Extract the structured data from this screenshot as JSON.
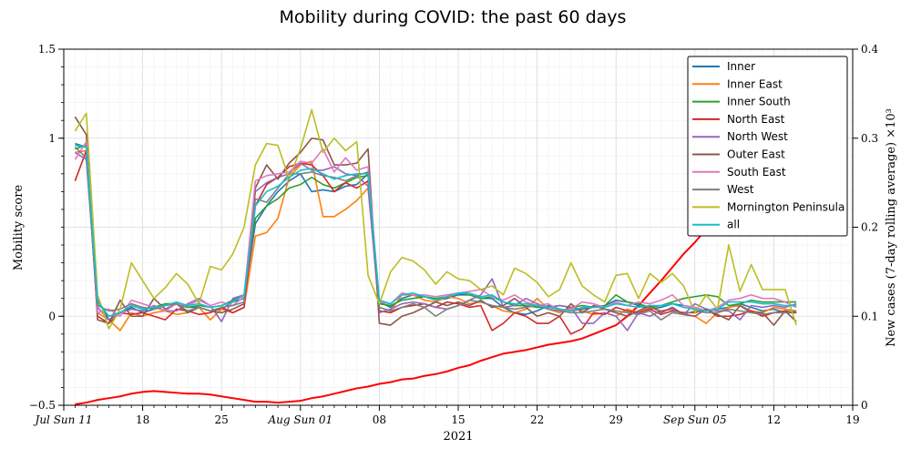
{
  "chart_data": {
    "type": "line",
    "title": "Mobility during COVID: the past 60 days",
    "xlabel": "2021",
    "ylabel": "Mobility score",
    "y2label": "New cases (7-day rolling average) ×10³",
    "ylim": [
      -0.5,
      1.5
    ],
    "y2lim": [
      0,
      0.4
    ],
    "xlim_days": [
      0,
      70
    ],
    "y_ticks": [
      {
        "value": -0.5,
        "label": "−0.5"
      },
      {
        "value": 0,
        "label": "0"
      },
      {
        "value": 1,
        "label": "1"
      },
      {
        "value": 1.5,
        "label": "1.5"
      }
    ],
    "y2_ticks": [
      {
        "value": 0,
        "label": "0"
      },
      {
        "value": 0.1,
        "label": "0.1"
      },
      {
        "value": 0.2,
        "label": "0.2"
      },
      {
        "value": 0.3,
        "label": "0.3"
      },
      {
        "value": 0.4,
        "label": "0.4"
      }
    ],
    "x_ticks": [
      {
        "day": 0,
        "label": "Jul Sun 11",
        "italic": true
      },
      {
        "day": 7,
        "label": "18"
      },
      {
        "day": 14,
        "label": "25"
      },
      {
        "day": 21,
        "label": "Aug Sun 01",
        "italic": true
      },
      {
        "day": 28,
        "label": "08"
      },
      {
        "day": 35,
        "label": "15"
      },
      {
        "day": 42,
        "label": "22"
      },
      {
        "day": 49,
        "label": "29"
      },
      {
        "day": 56,
        "label": "Sep Sun 05",
        "italic": true
      },
      {
        "day": 63,
        "label": "12"
      },
      {
        "day": 70,
        "label": "19"
      }
    ],
    "grid": true,
    "legend": "top-right",
    "start_day": 1,
    "series": [
      {
        "name": "Inner",
        "color": "#1f77b4",
        "values": [
          0.97,
          0.95,
          0.1,
          -0.02,
          0.02,
          0.05,
          0.02,
          0.04,
          0.06,
          0.07,
          0.05,
          0.05,
          0.03,
          0.04,
          0.08,
          0.1,
          0.52,
          0.62,
          0.7,
          0.76,
          0.8,
          0.7,
          0.71,
          0.7,
          0.73,
          0.74,
          0.8,
          0.08,
          0.05,
          0.1,
          0.12,
          0.11,
          0.09,
          0.1,
          0.12,
          0.12,
          0.1,
          0.1,
          0.05,
          0.02,
          0.01,
          0.03,
          0.06,
          0.04,
          0.03,
          0.04,
          0.05,
          0.06,
          0.09,
          0.08,
          0.06,
          0.04,
          0.05,
          0.07,
          0.06,
          0.05,
          0.03,
          0.04,
          0.05,
          0.07,
          0.05,
          0.03,
          0.04,
          0.02,
          0.02
        ]
      },
      {
        "name": "Inner East",
        "color": "#ff7f0e",
        "values": [
          0.92,
          0.93,
          0.02,
          -0.02,
          -0.08,
          0.02,
          0.0,
          0.02,
          0.03,
          0.01,
          0.02,
          0.05,
          -0.02,
          0.04,
          0.02,
          0.05,
          0.45,
          0.47,
          0.55,
          0.78,
          0.85,
          0.87,
          0.56,
          0.56,
          0.6,
          0.65,
          0.72,
          0.05,
          0.03,
          0.12,
          0.12,
          0.09,
          0.08,
          0.11,
          0.1,
          0.07,
          0.08,
          0.06,
          0.03,
          0.02,
          0.04,
          0.1,
          0.04,
          0.02,
          0.05,
          0.03,
          0.01,
          0.02,
          0.0,
          0.04,
          0.02,
          0.05,
          0.03,
          0.04,
          0.01,
          0.0,
          -0.04,
          0.02,
          0.05,
          0.06,
          0.03,
          0.02,
          0.05,
          0.04,
          0.03
        ]
      },
      {
        "name": "Inner South",
        "color": "#2ca02c",
        "values": [
          0.94,
          0.96,
          0.08,
          0.0,
          0.02,
          0.06,
          0.04,
          0.05,
          0.07,
          0.07,
          0.05,
          0.06,
          0.05,
          0.06,
          0.09,
          0.12,
          0.55,
          0.62,
          0.66,
          0.72,
          0.74,
          0.78,
          0.74,
          0.72,
          0.75,
          0.78,
          0.79,
          0.07,
          0.06,
          0.09,
          0.1,
          0.11,
          0.1,
          0.11,
          0.13,
          0.12,
          0.1,
          0.11,
          0.08,
          0.06,
          0.06,
          0.05,
          0.05,
          0.06,
          0.05,
          0.06,
          0.05,
          0.06,
          0.12,
          0.08,
          0.07,
          0.05,
          0.06,
          0.08,
          0.1,
          0.11,
          0.12,
          0.11,
          0.06,
          0.07,
          0.09,
          0.08,
          0.08,
          0.08,
          0.08
        ]
      },
      {
        "name": "North East",
        "color": "#d62728",
        "values": [
          0.76,
          0.93,
          0.0,
          -0.04,
          0.02,
          0.01,
          0.02,
          0.0,
          -0.02,
          0.04,
          0.03,
          0.01,
          0.02,
          0.05,
          0.02,
          0.05,
          0.62,
          0.74,
          0.78,
          0.84,
          0.86,
          0.85,
          0.79,
          0.7,
          0.75,
          0.72,
          0.76,
          0.03,
          0.02,
          0.05,
          0.06,
          0.07,
          0.05,
          0.08,
          0.07,
          0.05,
          0.06,
          -0.08,
          -0.04,
          0.02,
          0.0,
          -0.04,
          -0.04,
          0.0,
          -0.1,
          -0.07,
          0.02,
          0.01,
          0.05,
          0.03,
          0.02,
          0.04,
          0.01,
          0.03,
          0.02,
          0.02,
          0.04,
          0.0,
          0.0,
          0.01,
          0.03,
          0.0,
          0.02,
          0.03,
          0.02
        ]
      },
      {
        "name": "North West",
        "color": "#9467bd",
        "values": [
          0.92,
          0.88,
          0.05,
          -0.02,
          0.02,
          0.04,
          0.03,
          0.06,
          0.03,
          0.03,
          0.07,
          0.1,
          0.06,
          -0.03,
          0.1,
          0.12,
          0.7,
          0.75,
          0.78,
          0.8,
          0.86,
          0.82,
          0.82,
          0.84,
          0.8,
          0.79,
          0.73,
          0.02,
          0.04,
          0.07,
          0.08,
          0.07,
          0.05,
          0.04,
          0.06,
          0.09,
          0.12,
          0.21,
          0.05,
          0.06,
          0.1,
          0.07,
          0.05,
          0.06,
          0.05,
          -0.04,
          -0.04,
          0.02,
          0.0,
          -0.08,
          0.02,
          0.0,
          0.03,
          0.04,
          0.01,
          0.07,
          0.04,
          0.03,
          0.03,
          -0.02,
          0.06,
          0.05,
          0.06,
          0.05,
          0.07
        ]
      },
      {
        "name": "Outer East",
        "color": "#8c564b",
        "values": [
          1.12,
          1.02,
          -0.02,
          -0.04,
          0.09,
          0.0,
          0.0,
          0.1,
          0.04,
          0.07,
          0.02,
          0.05,
          0.03,
          0.02,
          0.04,
          0.07,
          0.72,
          0.85,
          0.77,
          0.86,
          0.92,
          1.0,
          0.99,
          0.85,
          0.85,
          0.86,
          0.94,
          -0.04,
          -0.05,
          0.0,
          0.02,
          0.05,
          0.08,
          0.06,
          0.08,
          0.06,
          0.09,
          0.05,
          0.06,
          0.1,
          0.05,
          0.0,
          0.02,
          0.0,
          0.07,
          0.02,
          0.06,
          0.04,
          0.02,
          0.0,
          0.03,
          0.06,
          0.02,
          0.05,
          0.01,
          0.0,
          0.04,
          0.01,
          -0.02,
          0.06,
          0.02,
          0.02,
          -0.05,
          0.03,
          -0.03
        ]
      },
      {
        "name": "South East",
        "color": "#e377c2",
        "values": [
          0.88,
          0.98,
          0.02,
          0.04,
          0.0,
          0.09,
          0.07,
          0.05,
          0.03,
          0.07,
          0.06,
          0.09,
          0.06,
          0.08,
          0.06,
          0.11,
          0.76,
          0.79,
          0.8,
          0.81,
          0.87,
          0.86,
          0.94,
          0.81,
          0.89,
          0.82,
          0.84,
          0.08,
          0.07,
          0.13,
          0.12,
          0.12,
          0.11,
          0.12,
          0.13,
          0.14,
          0.15,
          0.11,
          0.09,
          0.12,
          0.08,
          0.06,
          0.07,
          0.03,
          0.04,
          0.08,
          0.07,
          0.05,
          0.08,
          0.06,
          0.08,
          0.07,
          0.09,
          0.12,
          0.06,
          0.05,
          0.03,
          0.05,
          0.09,
          0.1,
          0.12,
          0.1,
          0.1,
          0.08,
          0.05
        ]
      },
      {
        "name": "West",
        "color": "#7f7f7f",
        "values": [
          0.95,
          0.89,
          0.06,
          0.03,
          0.04,
          0.07,
          0.05,
          0.04,
          0.06,
          0.07,
          0.03,
          0.05,
          0.03,
          0.05,
          0.06,
          0.08,
          0.66,
          0.64,
          0.72,
          0.8,
          0.8,
          0.81,
          0.79,
          0.78,
          0.76,
          0.79,
          0.81,
          0.05,
          0.03,
          0.05,
          0.07,
          0.05,
          0.0,
          0.04,
          0.06,
          0.09,
          0.08,
          0.06,
          0.05,
          0.04,
          0.05,
          0.06,
          0.04,
          0.03,
          0.02,
          0.02,
          0.03,
          0.04,
          0.03,
          0.02,
          0.01,
          0.03,
          -0.02,
          0.02,
          0.01,
          0.03,
          0.02,
          0.02,
          0.04,
          0.03,
          0.02,
          0.01,
          0.02,
          0.02,
          0.03
        ]
      },
      {
        "name": "Mornington Peninsula",
        "color": "#bcbd22",
        "values": [
          1.04,
          1.14,
          0.12,
          -0.07,
          0.04,
          0.3,
          0.2,
          0.1,
          0.16,
          0.24,
          0.18,
          0.07,
          0.28,
          0.26,
          0.35,
          0.5,
          0.85,
          0.97,
          0.96,
          0.77,
          0.94,
          1.16,
          0.92,
          1.0,
          0.93,
          0.98,
          0.23,
          0.07,
          0.25,
          0.33,
          0.31,
          0.26,
          0.18,
          0.25,
          0.21,
          0.2,
          0.15,
          0.17,
          0.12,
          0.27,
          0.24,
          0.19,
          0.11,
          0.15,
          0.3,
          0.17,
          0.12,
          0.08,
          0.23,
          0.24,
          0.1,
          0.24,
          0.19,
          0.24,
          0.17,
          0.02,
          0.12,
          0.04,
          0.4,
          0.14,
          0.29,
          0.15,
          0.15,
          0.15,
          -0.05
        ]
      },
      {
        "name": "all",
        "color": "#17becf",
        "values": [
          0.96,
          0.95,
          0.08,
          0.0,
          0.02,
          0.06,
          0.04,
          0.05,
          0.06,
          0.08,
          0.06,
          0.07,
          0.05,
          0.06,
          0.08,
          0.12,
          0.62,
          0.7,
          0.73,
          0.78,
          0.82,
          0.83,
          0.8,
          0.77,
          0.79,
          0.8,
          0.8,
          0.09,
          0.07,
          0.12,
          0.13,
          0.11,
          0.09,
          0.11,
          0.13,
          0.13,
          0.11,
          0.12,
          0.08,
          0.07,
          0.07,
          0.06,
          0.05,
          0.04,
          0.03,
          0.05,
          0.05,
          0.05,
          0.07,
          0.06,
          0.05,
          0.06,
          0.06,
          0.07,
          0.05,
          0.04,
          0.03,
          0.04,
          0.08,
          0.08,
          0.08,
          0.07,
          0.07,
          0.06,
          0.06
        ]
      }
    ],
    "cases": {
      "color": "#ff0000",
      "points": [
        [
          1,
          0.001
        ],
        [
          2,
          0.003
        ],
        [
          3,
          0.006
        ],
        [
          4,
          0.008
        ],
        [
          5,
          0.01
        ],
        [
          6,
          0.013
        ],
        [
          7,
          0.015
        ],
        [
          8,
          0.016
        ],
        [
          9,
          0.015
        ],
        [
          10,
          0.014
        ],
        [
          11,
          0.013
        ],
        [
          12,
          0.013
        ],
        [
          13,
          0.012
        ],
        [
          14,
          0.01
        ],
        [
          15,
          0.008
        ],
        [
          16,
          0.006
        ],
        [
          17,
          0.004
        ],
        [
          18,
          0.004
        ],
        [
          19,
          0.003
        ],
        [
          20,
          0.004
        ],
        [
          21,
          0.005
        ],
        [
          22,
          0.008
        ],
        [
          23,
          0.01
        ],
        [
          24,
          0.013
        ],
        [
          25,
          0.016
        ],
        [
          26,
          0.019
        ],
        [
          27,
          0.021
        ],
        [
          28,
          0.024
        ],
        [
          29,
          0.026
        ],
        [
          30,
          0.029
        ],
        [
          31,
          0.03
        ],
        [
          32,
          0.033
        ],
        [
          33,
          0.035
        ],
        [
          34,
          0.038
        ],
        [
          35,
          0.042
        ],
        [
          36,
          0.045
        ],
        [
          37,
          0.05
        ],
        [
          38,
          0.054
        ],
        [
          39,
          0.058
        ],
        [
          40,
          0.06
        ],
        [
          41,
          0.062
        ],
        [
          42,
          0.065
        ],
        [
          43,
          0.068
        ],
        [
          44,
          0.07
        ],
        [
          45,
          0.072
        ],
        [
          46,
          0.075
        ],
        [
          47,
          0.08
        ],
        [
          48,
          0.085
        ],
        [
          49,
          0.09
        ],
        [
          50,
          0.1
        ],
        [
          51,
          0.112
        ],
        [
          52,
          0.126
        ],
        [
          53,
          0.14
        ],
        [
          54,
          0.155
        ],
        [
          55,
          0.17
        ],
        [
          56,
          0.183
        ],
        [
          57,
          0.198
        ],
        [
          58,
          0.215
        ],
        [
          59,
          0.232
        ],
        [
          60,
          0.25
        ],
        [
          61,
          0.27
        ],
        [
          62,
          0.29
        ],
        [
          63,
          0.31
        ],
        [
          64,
          0.33
        ]
      ]
    }
  }
}
